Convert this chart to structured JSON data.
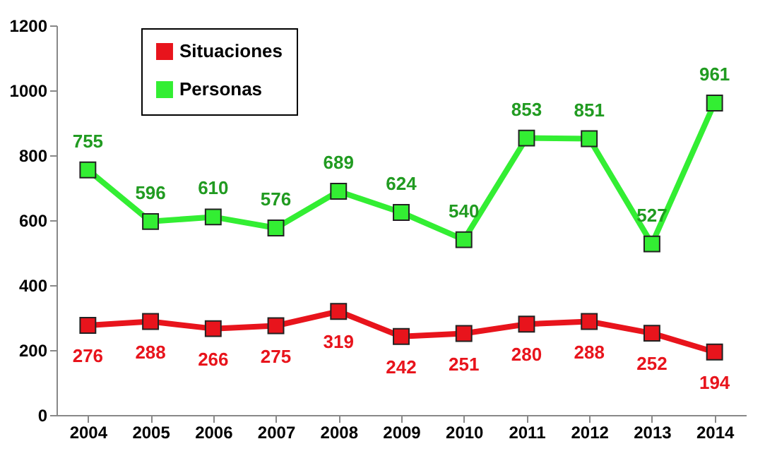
{
  "chart_data": {
    "type": "line",
    "categories": [
      "2004",
      "2005",
      "2006",
      "2007",
      "2008",
      "2009",
      "2010",
      "2011",
      "2012",
      "2013",
      "2014"
    ],
    "series": [
      {
        "name": "Situaciones",
        "color": "#e8141c",
        "values": [
          276,
          288,
          266,
          275,
          319,
          242,
          251,
          280,
          288,
          252,
          194
        ]
      },
      {
        "name": "Personas",
        "color": "#33ee33",
        "values": [
          755,
          596,
          610,
          576,
          689,
          624,
          540,
          853,
          851,
          527,
          961
        ]
      }
    ],
    "ylim": [
      0,
      1200
    ],
    "yticks": [
      0,
      200,
      400,
      600,
      800,
      1000,
      1200
    ],
    "grid": false,
    "legend": "top left",
    "marker": "square",
    "line_style": "solid",
    "data_labels": true
  }
}
